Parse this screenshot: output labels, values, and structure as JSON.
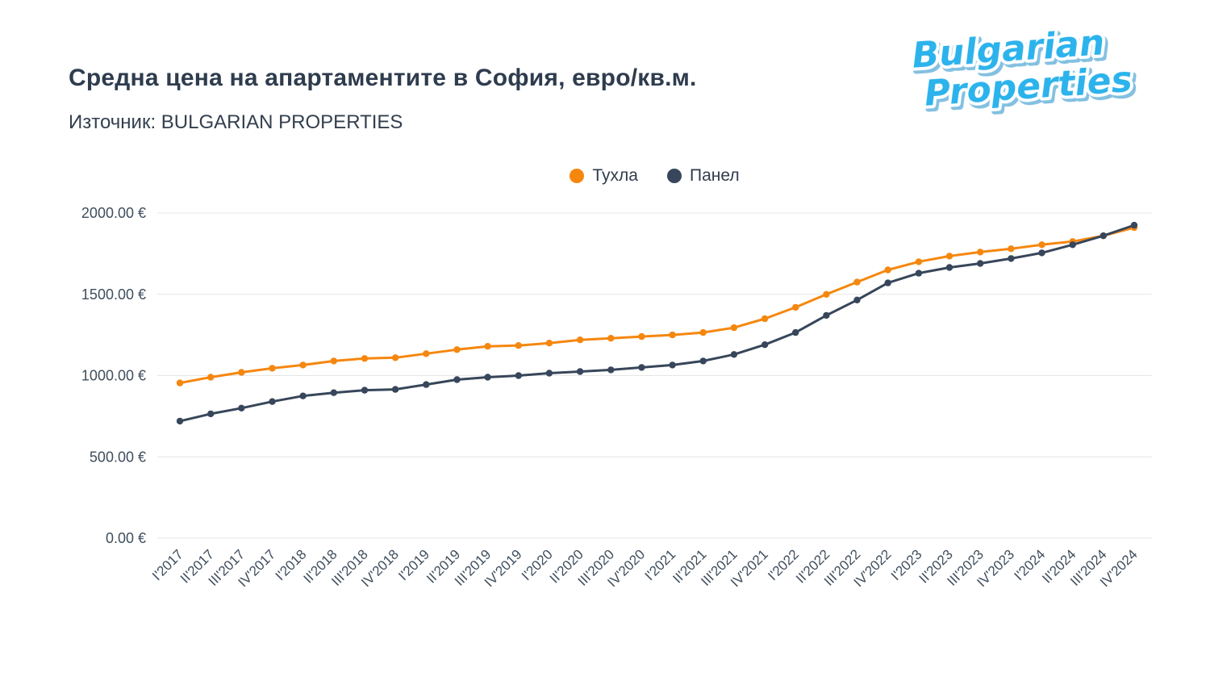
{
  "header": {
    "title": "Средна цена на апартаментите в София, евро/кв.м.",
    "source": "Източник: BULGARIAN PROPERTIES"
  },
  "logo": {
    "line1": "Bulgarian",
    "line2": "Properties",
    "color": "#2cb3ec"
  },
  "legend": [
    {
      "label": "Тухла",
      "color": "#f5870f"
    },
    {
      "label": "Панел",
      "color": "#37465a"
    }
  ],
  "chart_data": {
    "type": "line",
    "title": "Средна цена на апартаментите в София, евро/кв.м.",
    "subtitle": "Източник: BULGARIAN PROPERTIES",
    "xlabel": "",
    "ylabel": "",
    "ylim": [
      0,
      2000
    ],
    "grid": true,
    "legend_position": "top-center",
    "yticks": [
      {
        "value": 0,
        "label": "0.00 €"
      },
      {
        "value": 500,
        "label": "500.00 €"
      },
      {
        "value": 1000,
        "label": "1000.00 €"
      },
      {
        "value": 1500,
        "label": "1500.00 €"
      },
      {
        "value": 2000,
        "label": "2000.00 €"
      }
    ],
    "x": [
      "I'2017",
      "II'2017",
      "III'2017",
      "IV'2017",
      "I'2018",
      "II'2018",
      "III'2018",
      "IV'2018",
      "I'2019",
      "II'2019",
      "III'2019",
      "IV'2019",
      "I'2020",
      "II'2020",
      "III'2020",
      "IV'2020",
      "I'2021",
      "II'2021",
      "III'2021",
      "IV'2021",
      "I'2022",
      "II'2022",
      "III'2022",
      "IV'2022",
      "I'2023",
      "II'2023",
      "III'2023",
      "IV'2023",
      "I'2024",
      "II'2024",
      "III'2024",
      "IV'2024"
    ],
    "series": [
      {
        "id": "tuhla",
        "name": "Тухла",
        "color": "#f5870f",
        "values": [
          955,
          990,
          1020,
          1045,
          1065,
          1090,
          1105,
          1110,
          1135,
          1160,
          1180,
          1185,
          1200,
          1220,
          1230,
          1240,
          1250,
          1265,
          1295,
          1350,
          1420,
          1500,
          1575,
          1650,
          1700,
          1735,
          1760,
          1780,
          1805,
          1825,
          1860,
          1910
        ]
      },
      {
        "id": "panel",
        "name": "Панел",
        "color": "#37465a",
        "values": [
          720,
          765,
          800,
          840,
          875,
          895,
          910,
          915,
          945,
          975,
          990,
          1000,
          1015,
          1025,
          1035,
          1050,
          1065,
          1090,
          1130,
          1190,
          1265,
          1370,
          1465,
          1570,
          1630,
          1665,
          1690,
          1720,
          1755,
          1805,
          1860,
          1925
        ]
      }
    ]
  }
}
